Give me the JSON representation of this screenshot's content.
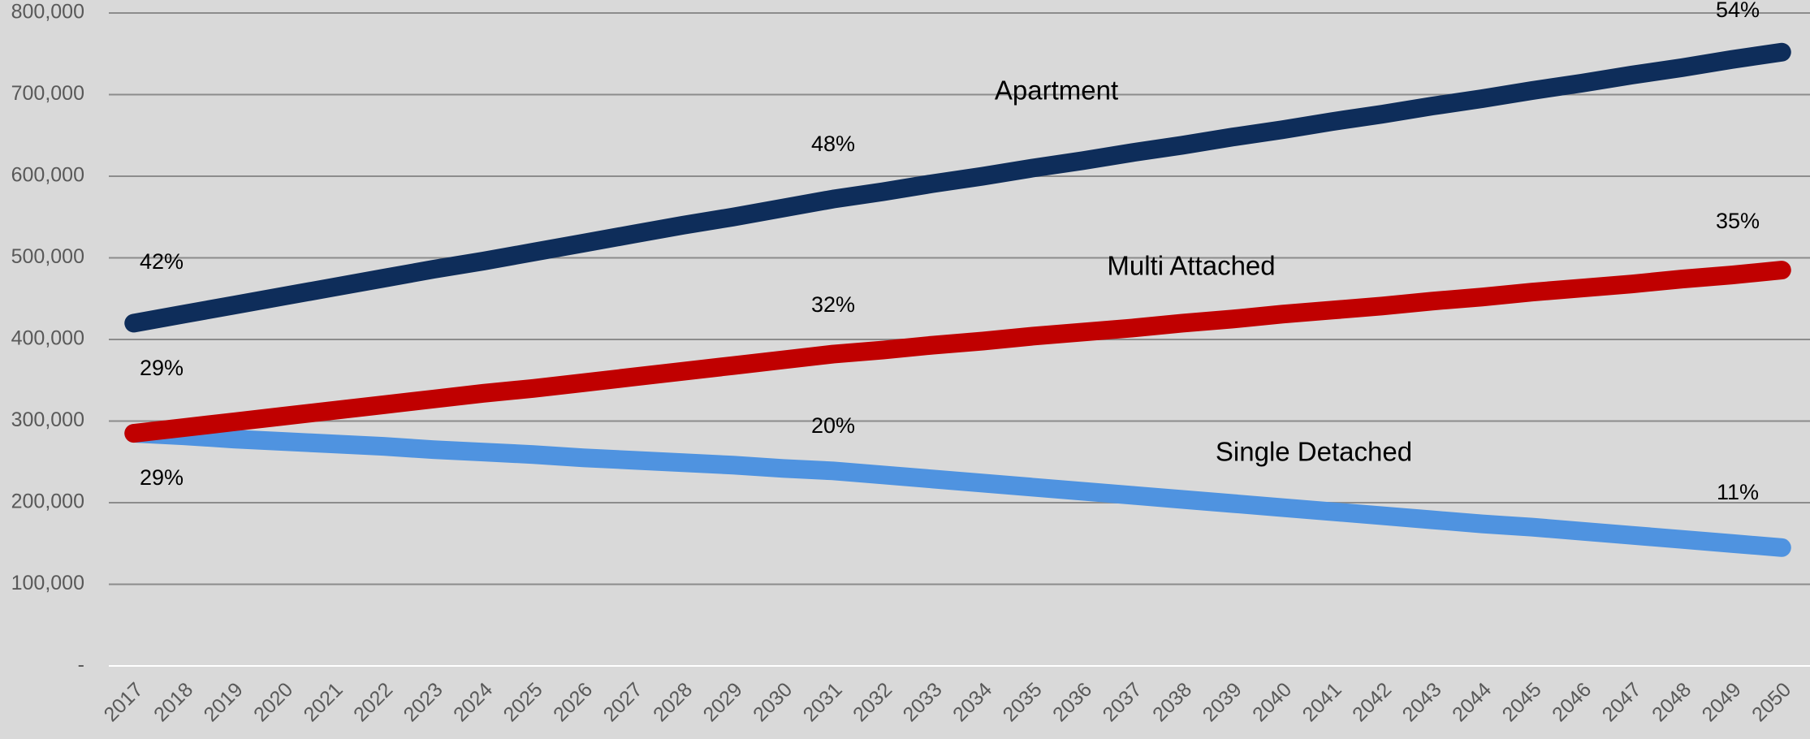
{
  "chart_data": {
    "type": "line",
    "categories": [
      "2017",
      "2018",
      "2019",
      "2020",
      "2021",
      "2022",
      "2023",
      "2024",
      "2025",
      "2026",
      "2027",
      "2028",
      "2029",
      "2030",
      "2031",
      "2032",
      "2033",
      "2034",
      "2035",
      "2036",
      "2037",
      "2038",
      "2039",
      "2040",
      "2041",
      "2042",
      "2043",
      "2044",
      "2045",
      "2046",
      "2047",
      "2048",
      "2049",
      "2050"
    ],
    "series": [
      {
        "name": "Apartment",
        "color": "#0e2d5a",
        "values": [
          420000,
          431000,
          442000,
          453000,
          464000,
          475000,
          486000,
          496000,
          507000,
          518000,
          529000,
          540000,
          550000,
          561000,
          572000,
          581000,
          591000,
          600000,
          610000,
          619000,
          629000,
          638000,
          648000,
          657000,
          667000,
          676000,
          686000,
          695000,
          705000,
          714000,
          724000,
          733000,
          743000,
          752000
        ]
      },
      {
        "name": "Multi Attached",
        "color": "#c00000",
        "values": [
          285000,
          292000,
          299000,
          306000,
          313000,
          320000,
          327000,
          334000,
          340000,
          347000,
          354000,
          361000,
          368000,
          375000,
          382000,
          387000,
          393000,
          398000,
          404000,
          409000,
          414000,
          420000,
          425000,
          431000,
          436000,
          441000,
          447000,
          452000,
          458000,
          463000,
          468000,
          474000,
          479000,
          485000
        ]
      },
      {
        "name": "Single Detached",
        "color": "#4f93e0",
        "values": [
          285000,
          282000,
          278000,
          275000,
          272000,
          269000,
          265000,
          262000,
          259000,
          255000,
          252000,
          249000,
          246000,
          242000,
          239000,
          234000,
          229000,
          224000,
          219000,
          214000,
          209000,
          204000,
          199000,
          194000,
          189000,
          184000,
          179000,
          174000,
          170000,
          165000,
          160000,
          155000,
          150000,
          145000
        ]
      }
    ],
    "percent_labels": [
      "42%",
      "29%",
      "29%",
      "48%",
      "32%",
      "20%",
      "54%",
      "35%",
      "11%"
    ],
    "ylim": [
      0,
      800000
    ],
    "yticks": [
      {
        "value": 0,
        "label": "-"
      },
      {
        "value": 100000,
        "label": "100,000"
      },
      {
        "value": 200000,
        "label": "200,000"
      },
      {
        "value": 300000,
        "label": "300,000"
      },
      {
        "value": 400000,
        "label": "400,000"
      },
      {
        "value": 500000,
        "label": "500,000"
      },
      {
        "value": 600000,
        "label": "600,000"
      },
      {
        "value": 700000,
        "label": "700,000"
      },
      {
        "value": 800000,
        "label": "800,000"
      }
    ],
    "grid": true
  }
}
